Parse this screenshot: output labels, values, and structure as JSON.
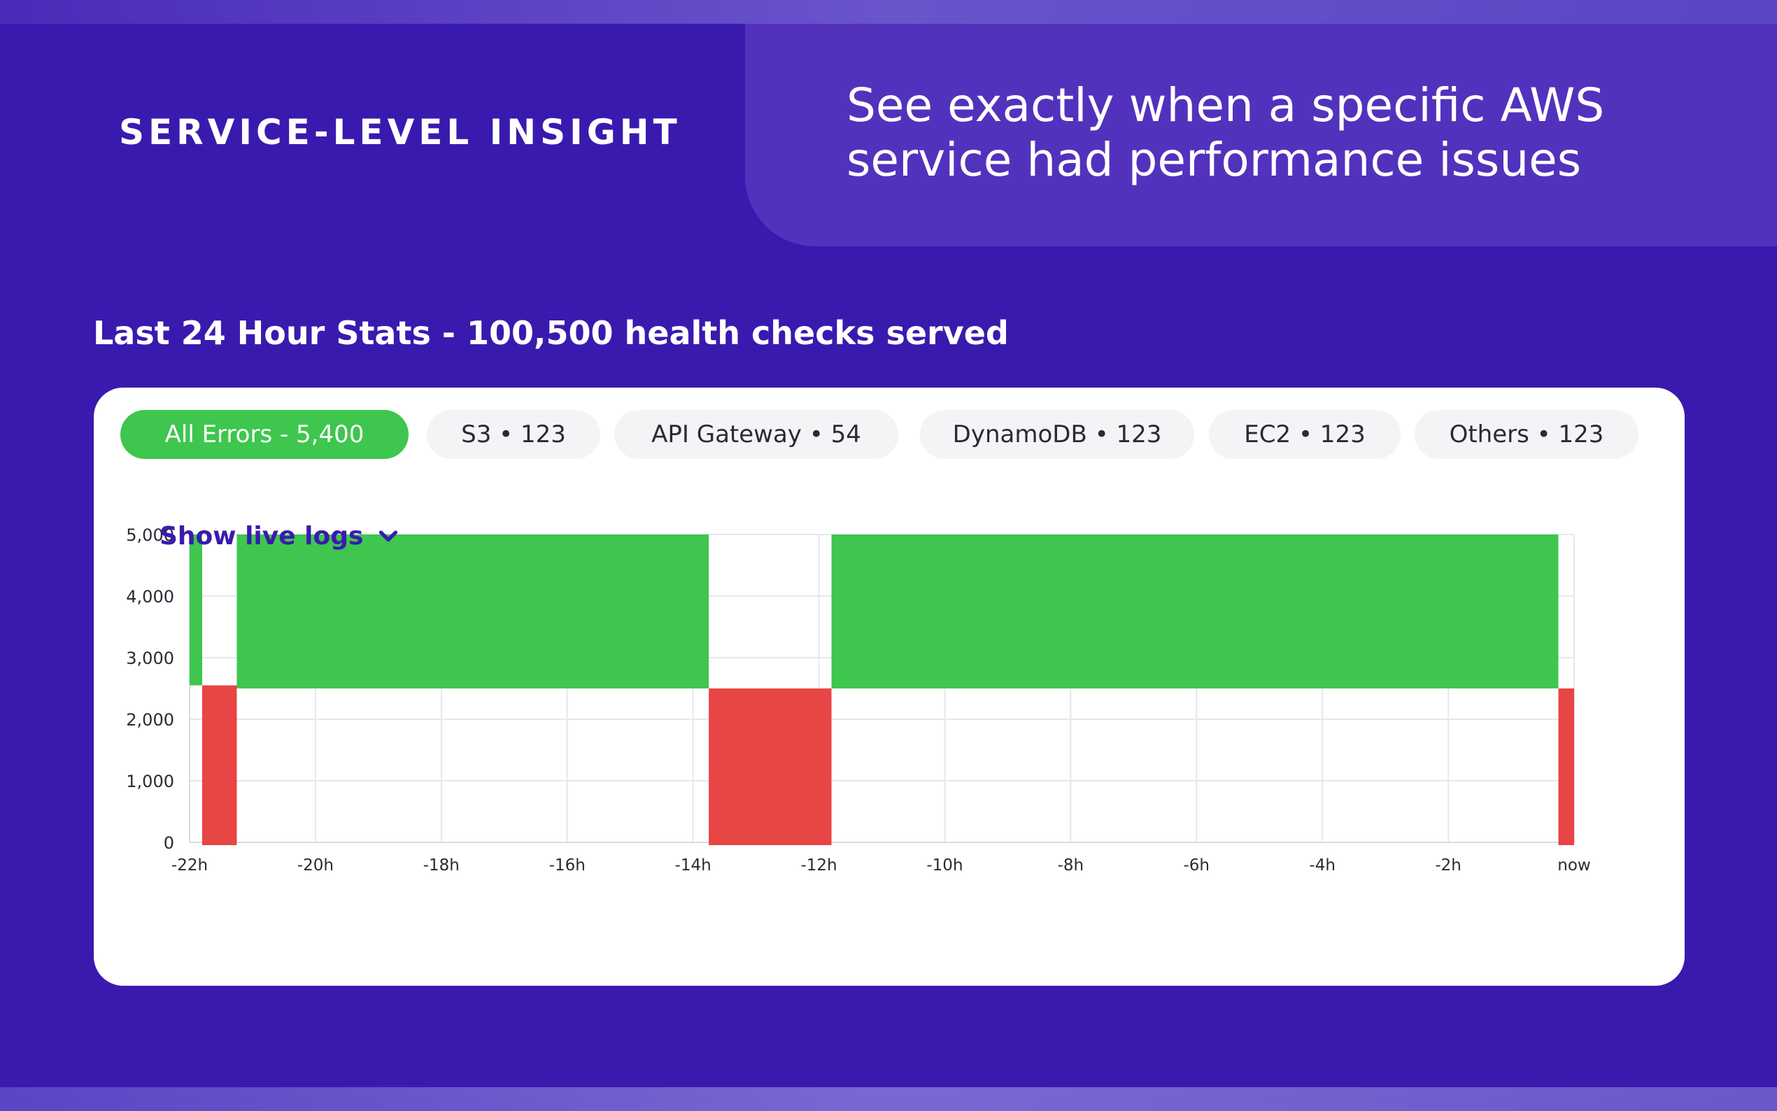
{
  "hero": {
    "eyebrow": "SERVICE-LEVEL INSIGHT",
    "headline": "See exactly when a specific AWS service had performance issues"
  },
  "stats": {
    "heading": "Last 24 Hour Stats - 100,500 health checks served"
  },
  "tabs": [
    {
      "label": "All Errors - 5,400",
      "active": true
    },
    {
      "label": "S3 • 123",
      "active": false
    },
    {
      "label": "API Gateway • 54",
      "active": false
    },
    {
      "label": "DynamoDB • 123",
      "active": false
    },
    {
      "label": "EC2 • 123",
      "active": false
    },
    {
      "label": "Others • 123",
      "active": false
    }
  ],
  "chart_data": {
    "type": "bar",
    "stacked": true,
    "x_ticks": [
      "-22h",
      "-20h",
      "-18h",
      "-16h",
      "-14h",
      "-12h",
      "-10h",
      "-8h",
      "-6h",
      "-4h",
      "-2h",
      "now"
    ],
    "y_ticks": [
      "0",
      "1,000",
      "2,000",
      "3,000",
      "4,000",
      "5,000"
    ],
    "ylim": [
      0,
      5000
    ],
    "x_range_hours": [
      -22,
      0
    ],
    "grid": true,
    "colors": {
      "green": "#3ec64e",
      "red": "#e84545"
    },
    "segments": [
      {
        "start": -22.0,
        "end": -21.8,
        "green_from": 2550,
        "green_to": 5000,
        "red": 0
      },
      {
        "start": -21.8,
        "end": -21.25,
        "green_from": 0,
        "green_to": 0,
        "red": 2550
      },
      {
        "start": -21.25,
        "end": -13.75,
        "green_from": 2500,
        "green_to": 5000,
        "red": 0
      },
      {
        "start": -13.75,
        "end": -11.8,
        "green_from": 0,
        "green_to": 0,
        "red": 2500
      },
      {
        "start": -11.8,
        "end": -0.25,
        "green_from": 2500,
        "green_to": 5000,
        "red": 0
      },
      {
        "start": -0.25,
        "end": 0.0,
        "green_from": 0,
        "green_to": 0,
        "red": 2500
      }
    ]
  },
  "live_logs": {
    "label": "Show live logs",
    "icon": "chevron-down-icon"
  }
}
